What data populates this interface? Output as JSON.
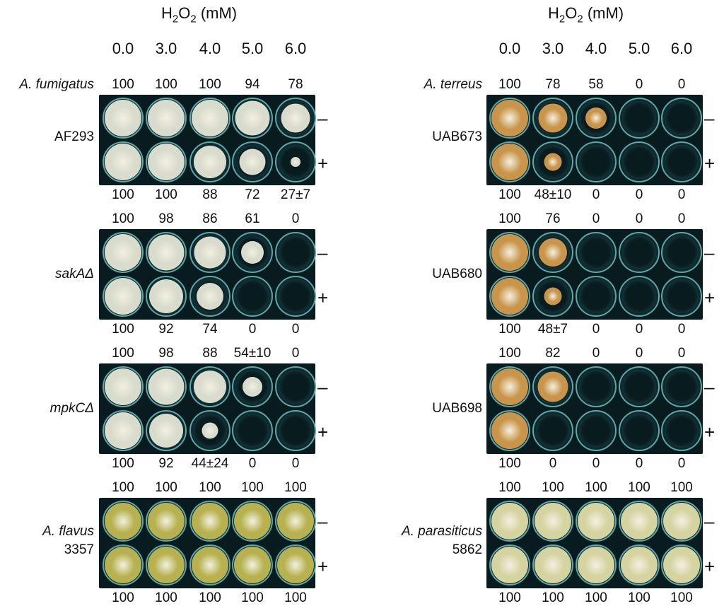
{
  "header": {
    "title_prefix": "H",
    "title_sub": "2",
    "title_mid": "O",
    "title_sub2": "2",
    "title_suffix": " (mM)",
    "concentrations": [
      "0.0",
      "3.0",
      "4.0",
      "5.0",
      "6.0"
    ]
  },
  "signs": {
    "minus": "–",
    "plus": "+"
  },
  "colors": {
    "background_dark": "#081c20",
    "fumigatus_colony": "#d9dccd",
    "terreus_colony": "#c8954a",
    "flavus_colony": "#b7b24f",
    "parasiticus_colony": "#d5d3a0"
  },
  "panels": [
    {
      "id": "af293",
      "species": "A. fumigatus",
      "strain": "AF293",
      "species_italic": true,
      "top_values": [
        "100",
        "100",
        "100",
        "94",
        "78"
      ],
      "bottom_values": [
        "100",
        "100",
        "88",
        "72",
        "27±7"
      ],
      "colony_minus": [
        100,
        100,
        100,
        94,
        78
      ],
      "colony_plus": [
        100,
        100,
        88,
        72,
        27
      ]
    },
    {
      "id": "saka",
      "strain": "sakAΔ",
      "strain_italic": true,
      "top_values": [
        "100",
        "98",
        "86",
        "61",
        "0"
      ],
      "bottom_values": [
        "100",
        "92",
        "74",
        "0",
        "0"
      ],
      "colony_minus": [
        100,
        98,
        86,
        61,
        0
      ],
      "colony_plus": [
        100,
        92,
        74,
        0,
        0
      ]
    },
    {
      "id": "mpkc",
      "strain": "mpkCΔ",
      "strain_italic": true,
      "top_values": [
        "100",
        "98",
        "88",
        "54±10",
        "0"
      ],
      "bottom_values": [
        "100",
        "92",
        "44±24",
        "0",
        "0"
      ],
      "colony_minus": [
        100,
        98,
        88,
        54,
        0
      ],
      "colony_plus": [
        100,
        92,
        44,
        0,
        0
      ]
    },
    {
      "id": "flavus",
      "species": "A. flavus",
      "strain": "3357",
      "species_italic": true,
      "top_values": [
        "100",
        "100",
        "100",
        "100",
        "100"
      ],
      "bottom_values": [
        "100",
        "100",
        "100",
        "100",
        "100"
      ],
      "colony_minus": [
        100,
        100,
        100,
        100,
        100
      ],
      "colony_plus": [
        100,
        100,
        100,
        100,
        100
      ]
    },
    {
      "id": "uab673",
      "species": "A. terreus",
      "strain": "UAB673",
      "species_italic": true,
      "top_values": [
        "100",
        "78",
        "58",
        "0",
        "0"
      ],
      "bottom_values": [
        "100",
        "48±10",
        "0",
        "0",
        "0"
      ],
      "colony_minus": [
        100,
        78,
        58,
        0,
        0
      ],
      "colony_plus": [
        100,
        48,
        0,
        0,
        0
      ]
    },
    {
      "id": "uab680",
      "strain": "UAB680",
      "top_values": [
        "100",
        "76",
        "0",
        "0",
        "0"
      ],
      "bottom_values": [
        "100",
        "48±7",
        "0",
        "0",
        "0"
      ],
      "colony_minus": [
        100,
        76,
        0,
        0,
        0
      ],
      "colony_plus": [
        100,
        48,
        0,
        0,
        0
      ]
    },
    {
      "id": "uab698",
      "strain": "UAB698",
      "top_values": [
        "100",
        "82",
        "0",
        "0",
        "0"
      ],
      "bottom_values": [
        "100",
        "0",
        "0",
        "0",
        "0"
      ],
      "colony_minus": [
        100,
        82,
        0,
        0,
        0
      ],
      "colony_plus": [
        100,
        0,
        0,
        0,
        0
      ]
    },
    {
      "id": "parasiticus",
      "species": "A. parasiticus",
      "strain": "5862",
      "species_italic": true,
      "top_values": [
        "100",
        "100",
        "100",
        "100",
        "100"
      ],
      "bottom_values": [
        "100",
        "100",
        "100",
        "100",
        "100"
      ],
      "colony_minus": [
        100,
        100,
        100,
        100,
        100
      ],
      "colony_plus": [
        100,
        100,
        100,
        100,
        100
      ]
    }
  ]
}
